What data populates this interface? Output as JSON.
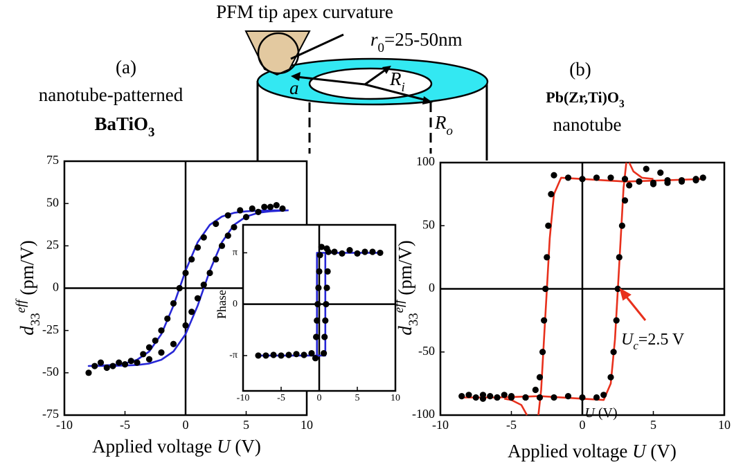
{
  "chart_data": [
    {
      "type": "line",
      "xlim": [
        -10,
        10
      ],
      "ylim": [
        -75,
        75
      ],
      "xticks": [
        -10,
        -5,
        0,
        5,
        10
      ],
      "yticks": [
        75,
        50,
        25,
        0,
        -25,
        -50,
        -75
      ],
      "zero_lines": true,
      "x_label": [
        "Applied voltage ",
        "U",
        " (V)"
      ],
      "y_label": [
        "d",
        "33",
        "eff",
        " (pm/V)"
      ],
      "series": [
        {
          "mode": "line",
          "color": "#2727d6",
          "x": [
            8.5,
            7,
            6,
            5,
            4,
            3,
            2,
            1,
            0,
            -1,
            -2,
            -3,
            -4,
            -5,
            -6,
            -8,
            -8,
            -6,
            -5,
            -4,
            -3,
            -2,
            -1,
            0,
            1,
            2,
            3,
            4,
            5,
            6,
            7,
            8.5
          ],
          "values": [
            46,
            46,
            45.7,
            45.4,
            44.5,
            42.3,
            37.4,
            27.2,
            10.3,
            -10.3,
            -27.2,
            -37.4,
            -42.3,
            -44.5,
            -45.4,
            -46,
            -46,
            -45.9,
            -45.7,
            -45.4,
            -44.5,
            -42.3,
            -37.4,
            -27.2,
            -10.3,
            10.3,
            27.2,
            37.4,
            42.3,
            44.5,
            45.4,
            46
          ]
        },
        {
          "mode": "markers",
          "color": "#000000",
          "x": [
            -8,
            -7,
            -6,
            -5,
            -4,
            -3,
            -2,
            -1,
            0,
            0.5,
            1,
            1.5,
            2,
            2.5,
            3,
            3.5,
            4,
            5,
            6,
            7,
            8,
            7.5,
            6.5,
            5.5,
            4.5,
            3.5,
            2.5,
            1.5,
            1,
            0.5,
            0,
            -0.5,
            -1,
            -1.5,
            -2,
            -2.5,
            -3,
            -3.5,
            -4.5,
            -5.5,
            -6.5,
            -7.5
          ],
          "values": [
            -50,
            -44,
            -46,
            -45,
            -44,
            -42,
            -38,
            -33,
            -22,
            -14,
            -6,
            2,
            9,
            17,
            25,
            31,
            36,
            42,
            45,
            48,
            47,
            49,
            48,
            47,
            46,
            43,
            38,
            30,
            24,
            17,
            9,
            0,
            -9,
            -18,
            -25,
            -31,
            -35,
            -39,
            -43,
            -44,
            -47,
            -46
          ]
        }
      ]
    },
    {
      "type": "line",
      "xlim": [
        -10,
        10
      ],
      "ylim": [
        -5.3,
        4.85
      ],
      "xticks": [
        -10,
        -5,
        0,
        5,
        10
      ],
      "yticks": [
        {
          "value": 3.14159,
          "label": "π"
        },
        0,
        {
          "value": -3.14159,
          "label": "-π"
        }
      ],
      "zero_lines": true,
      "x_label": [
        "U",
        " (V)"
      ],
      "y_label": [
        "Phase"
      ],
      "series": [
        {
          "mode": "line",
          "color": "#2727d6",
          "x": [
            -8,
            0.8,
            0.8,
            8,
            8,
            -0.3,
            -0.3,
            -8
          ],
          "values": [
            -3.14,
            -3.14,
            3.14,
            3.14,
            3.14,
            3.14,
            -3.14,
            -3.14
          ]
        },
        {
          "mode": "markers",
          "color": "#000000",
          "x": [
            -8,
            -7,
            -6,
            -5,
            -4,
            -3,
            -2,
            -1,
            -0.5,
            -0.4,
            -0.3,
            -0.2,
            -0.1,
            0,
            0.1,
            0.3,
            1,
            2,
            3,
            4,
            5,
            6,
            7,
            8,
            1.2,
            1.1,
            1,
            0.9,
            0.8,
            0.7,
            0.6
          ],
          "values": [
            -3.14,
            -3.14,
            -3.1,
            -3.14,
            -3.1,
            -3.05,
            -3.1,
            -3.0,
            -3.3,
            -2,
            -1,
            0,
            1,
            2,
            3,
            3.5,
            3.4,
            3.2,
            3.1,
            3.3,
            3.1,
            3.2,
            3.2,
            3.14,
            3.2,
            2,
            1,
            0,
            -1,
            -2,
            -3
          ]
        }
      ]
    },
    {
      "type": "line",
      "xlim": [
        -10,
        10
      ],
      "ylim": [
        -100,
        100
      ],
      "xticks": [
        -10,
        -5,
        0,
        5,
        10
      ],
      "yticks": [
        100,
        50,
        0,
        -50,
        -100
      ],
      "zero_lines": true,
      "x_label": [
        "Applied voltage ",
        "U",
        " (V)"
      ],
      "y_label": [
        "d",
        "33",
        "eff",
        " (pm/V)"
      ],
      "annotation": [
        "U",
        "c",
        "=2.5 V"
      ],
      "series": [
        {
          "mode": "line",
          "color": "#e8301c",
          "x": [
            -8.5,
            -6,
            -3,
            0,
            1.5,
            2,
            2.3,
            2.5,
            2.7,
            2.9,
            3.1,
            null,
            8.5,
            6,
            3,
            0,
            -1.5,
            -2,
            -2.3,
            -2.5,
            -2.7,
            -2.9,
            -3.1,
            null,
            3.3,
            3.6,
            4.2,
            5,
            null,
            -3.9,
            -4.3,
            -5,
            -5.5
          ],
          "values": [
            -86,
            -86,
            -85,
            -87,
            -88,
            -75,
            -40,
            0,
            40,
            80,
            100,
            null,
            87,
            86,
            85,
            87,
            88,
            75,
            40,
            0,
            -40,
            -80,
            -100,
            null,
            100,
            93,
            88,
            87,
            null,
            -100,
            -92,
            -88,
            -87
          ]
        },
        {
          "mode": "markers",
          "color": "#000000",
          "x": [
            -8.5,
            -8,
            -7.5,
            -7,
            -6.5,
            -6,
            -5.5,
            -5,
            -4,
            -3,
            -2,
            -1,
            0,
            1,
            1.5,
            2,
            2.2,
            2.4,
            2.5,
            2.6,
            2.8,
            3,
            3.3,
            4,
            5,
            6,
            7,
            8,
            8.5,
            8,
            7,
            6,
            5,
            4,
            3,
            2,
            1,
            0,
            -1,
            -2,
            -2.2,
            -2.4,
            -2.5,
            -2.6,
            -2.7,
            -2.8,
            -3,
            -3.3,
            -4,
            -5,
            -6,
            -7,
            4.5,
            5.5
          ],
          "values": [
            -85,
            -84,
            -86,
            -84,
            -85,
            -86,
            -84,
            -85,
            -86,
            -86,
            -86,
            -85,
            -86,
            -86,
            -84,
            -70,
            -50,
            -25,
            0,
            25,
            50,
            70,
            82,
            85,
            84,
            86,
            85,
            87,
            88,
            86,
            86,
            84,
            83,
            85,
            87,
            88,
            88,
            87,
            88,
            90,
            75,
            50,
            25,
            0,
            -25,
            -50,
            -70,
            -80,
            -86,
            -86,
            -86,
            -87,
            95,
            92
          ]
        }
      ]
    }
  ],
  "diagram": {
    "tip_title": "PFM tip apex curvature",
    "tip_radius": [
      "r",
      "0",
      "=25-50nm"
    ],
    "a": "a",
    "ri": [
      "R",
      "i"
    ],
    "ro": [
      "R",
      "o"
    ]
  },
  "panels": {
    "a_label": "(a)",
    "a_line1": "nanotube-patterned",
    "a_line2": [
      "BaTiO",
      "3"
    ],
    "b_label": "(b)",
    "b_line1": [
      "Pb(Zr,Ti)O",
      "3"
    ],
    "b_line2": "nanotube"
  }
}
